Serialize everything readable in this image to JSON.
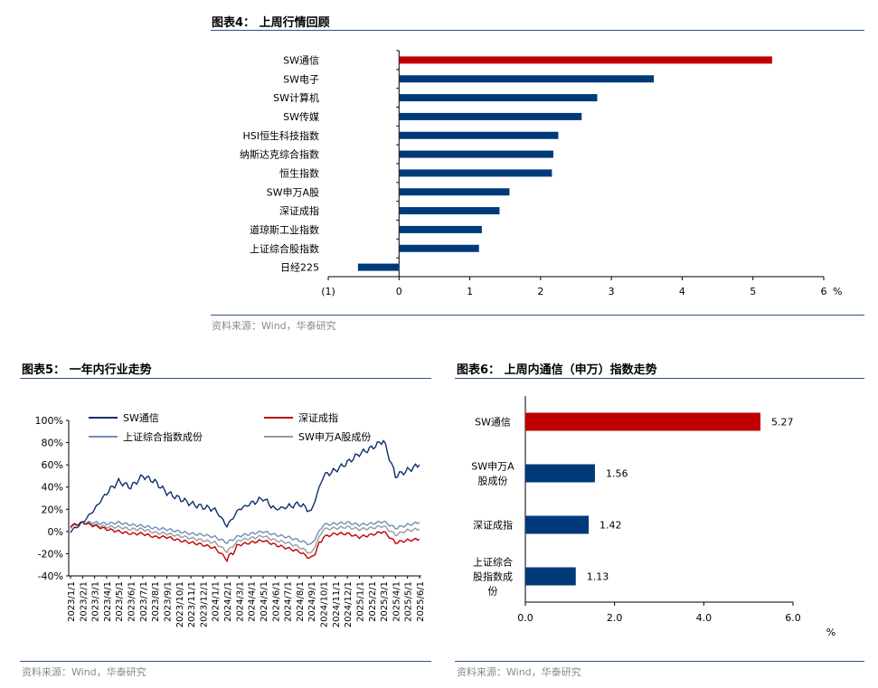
{
  "fig4": {
    "title": "图表4：  上周行情回顾",
    "source": "资料来源：Wind，华泰研究"
  },
  "fig5": {
    "title": "图表5：  一年内行业走势",
    "source": "资料来源：Wind，华泰研究"
  },
  "fig6": {
    "title": "图表6：  上周内通信（申万）指数走势",
    "source": "资料来源：Wind，华泰研究"
  },
  "chart_data": [
    {
      "id": "fig4",
      "type": "bar",
      "orientation": "horizontal",
      "categories": [
        "SW通信",
        "SW电子",
        "SW计算机",
        "SW传媒",
        "HSI恒生科技指数",
        "纳斯达克综合指数",
        "恒生指数",
        "SW申万A股",
        "深证成指",
        "道琼斯工业指数",
        "上证综合股指数",
        "日经225"
      ],
      "values": [
        5.27,
        3.6,
        2.8,
        2.58,
        2.25,
        2.18,
        2.16,
        1.56,
        1.42,
        1.17,
        1.13,
        -0.58
      ],
      "xlim": [
        -1,
        6
      ],
      "xticks": [
        "(1)",
        "0",
        "1",
        "2",
        "3",
        "4",
        "5",
        "6"
      ],
      "unit": "%",
      "colors": {
        "highlight": "#c00000",
        "bar": "#003a7a"
      }
    },
    {
      "id": "fig5",
      "type": "line",
      "ylim": [
        -40,
        100
      ],
      "yticks": [
        "-40%",
        "-20%",
        "0%",
        "20%",
        "40%",
        "60%",
        "80%",
        "100%"
      ],
      "x": [
        "2023/1/1",
        "2023/2/1",
        "2023/3/1",
        "2023/4/1",
        "2023/5/1",
        "2023/6/1",
        "2023/7/1",
        "2023/8/1",
        "2023/9/1",
        "2023/10/1",
        "2023/11/1",
        "2023/12/1",
        "2024/1/1",
        "2024/2/1",
        "2024/3/1",
        "2024/4/1",
        "2024/5/1",
        "2024/6/1",
        "2024/7/1",
        "2024/8/1",
        "2024/9/1",
        "2024/10/1",
        "2024/11/1",
        "2024/12/1",
        "2025/1/1",
        "2025/2/1",
        "2025/3/1",
        "2025/4/1",
        "2025/5/1",
        "2025/6/1"
      ],
      "legend": "top",
      "series": [
        {
          "name": "SW通信",
          "color": "#0d2f6e",
          "values": [
            0,
            8,
            20,
            35,
            45,
            40,
            50,
            45,
            35,
            30,
            25,
            22,
            20,
            5,
            20,
            25,
            30,
            20,
            22,
            25,
            18,
            50,
            55,
            62,
            70,
            75,
            82,
            50,
            55,
            60
          ]
        },
        {
          "name": "深证成指",
          "color": "#c00000",
          "values": [
            5,
            8,
            5,
            2,
            0,
            -2,
            -2,
            -5,
            -5,
            -8,
            -10,
            -12,
            -15,
            -25,
            -12,
            -10,
            -8,
            -12,
            -15,
            -18,
            -25,
            -5,
            -2,
            -2,
            -5,
            -3,
            0,
            -10,
            -8,
            -7
          ]
        },
        {
          "name": "上证综合指数成份",
          "color": "#6f8fb8",
          "values": [
            4,
            8,
            8,
            7,
            8,
            6,
            5,
            3,
            2,
            0,
            -2,
            -3,
            -5,
            -10,
            -4,
            -2,
            0,
            -3,
            -5,
            -8,
            -12,
            6,
            7,
            8,
            6,
            7,
            9,
            3,
            6,
            8
          ]
        },
        {
          "name": "SW申万A股成份",
          "color": "#9a9a9a",
          "values": [
            5,
            8,
            6,
            4,
            4,
            2,
            2,
            -1,
            -2,
            -4,
            -6,
            -8,
            -10,
            -18,
            -8,
            -6,
            -4,
            -8,
            -10,
            -14,
            -20,
            2,
            3,
            4,
            2,
            3,
            5,
            -3,
            1,
            2
          ]
        }
      ]
    },
    {
      "id": "fig6",
      "type": "bar",
      "orientation": "horizontal",
      "categories": [
        "SW通信",
        "SW申万A股成份",
        "深证成指",
        "上证综合股指数成份"
      ],
      "values": [
        5.27,
        1.56,
        1.42,
        1.13
      ],
      "value_labels": [
        "5.27",
        "1.56",
        "1.42",
        "1.13"
      ],
      "xlim": [
        0,
        6
      ],
      "xticks": [
        "0.0",
        "2.0",
        "4.0",
        "6.0"
      ],
      "unit": "%",
      "colors": {
        "highlight": "#c00000",
        "bar": "#003a7a"
      }
    }
  ]
}
